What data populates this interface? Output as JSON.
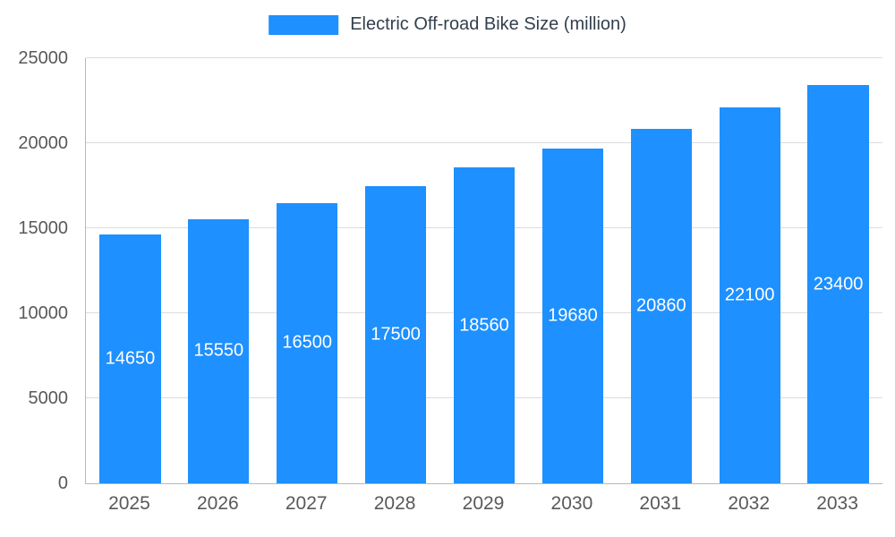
{
  "legend": {
    "label": "Electric Off-road Bike Size (million)"
  },
  "colors": {
    "bar": "#1e90ff",
    "grid": "#dcdcdc",
    "axis": "#b7b7b7",
    "tick_text": "#595959",
    "legend_text": "#333f4d",
    "value_text": "#ffffff"
  },
  "chart_data": {
    "type": "bar",
    "title": "Electric Off-road Bike Size (million)",
    "categories": [
      "2025",
      "2026",
      "2027",
      "2028",
      "2029",
      "2030",
      "2031",
      "2032",
      "2033"
    ],
    "values": [
      14650,
      15550,
      16500,
      17500,
      18560,
      19680,
      20860,
      22100,
      23400
    ],
    "xlabel": "",
    "ylabel": "",
    "ylim": [
      0,
      25000
    ],
    "yticks": [
      0,
      5000,
      10000,
      15000,
      20000,
      25000
    ],
    "grid": true,
    "legend_position": "top",
    "value_labels": "inside-center"
  }
}
